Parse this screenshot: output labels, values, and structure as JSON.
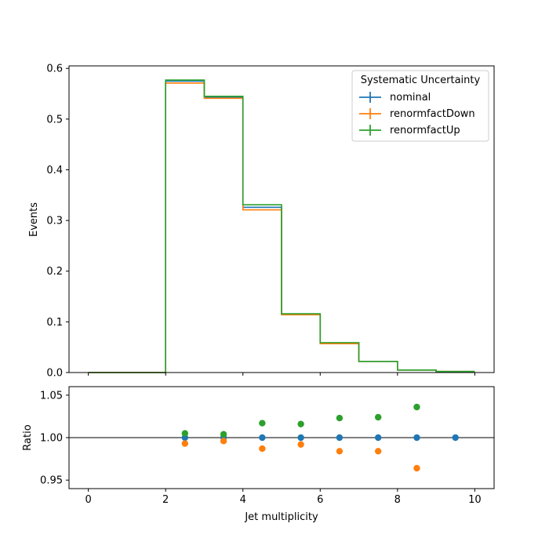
{
  "chart_data": [
    {
      "type": "step-histogram",
      "ylabel": "Events",
      "xlim": [
        -0.5,
        10.5
      ],
      "ylim": [
        0,
        0.605
      ],
      "bin_edges": [
        0,
        1,
        2,
        3,
        4,
        5,
        6,
        7,
        8,
        9,
        10
      ],
      "xticks": [
        0,
        2,
        4,
        6,
        8,
        10
      ],
      "yticks": [
        0.0,
        0.1,
        0.2,
        0.3,
        0.4,
        0.5,
        0.6
      ],
      "ytick_labels": [
        "0.0",
        "0.1",
        "0.2",
        "0.3",
        "0.4",
        "0.5",
        "0.6"
      ],
      "legend": {
        "title": "Systematic Uncertainty",
        "placement": "top-right"
      },
      "series": [
        {
          "name": "nominal",
          "color": "#1f77b4",
          "values": [
            0,
            0,
            0.575,
            0.543,
            0.326,
            0.115,
            0.058,
            0.022,
            0.005,
            0.002
          ]
        },
        {
          "name": "renormfactDown",
          "color": "#ff7f0e",
          "values": [
            0,
            0,
            0.571,
            0.541,
            0.321,
            0.114,
            0.057,
            0.022,
            0.005,
            0.002
          ]
        },
        {
          "name": "renormfactUp",
          "color": "#2ca02c",
          "values": [
            0,
            0,
            0.577,
            0.545,
            0.331,
            0.116,
            0.059,
            0.022,
            0.005,
            0.002
          ]
        }
      ]
    },
    {
      "type": "scatter",
      "xlabel": "Jet multiplicity",
      "ylabel": "Ratio",
      "xlim": [
        -0.5,
        10.5
      ],
      "ylim": [
        0.94,
        1.06
      ],
      "xticks": [
        0,
        2,
        4,
        6,
        8,
        10
      ],
      "xtick_labels": [
        "0",
        "2",
        "4",
        "6",
        "8",
        "10"
      ],
      "yticks": [
        0.95,
        1.0,
        1.05
      ],
      "ytick_labels": [
        "0.95",
        "1.00",
        "1.05"
      ],
      "reference_line": 1.0,
      "series": [
        {
          "name": "nominal",
          "color": "#1f77b4",
          "x": [
            2.5,
            3.5,
            4.5,
            5.5,
            6.5,
            7.5,
            8.5,
            9.5
          ],
          "y": [
            1.0,
            1.0,
            1.0,
            1.0,
            1.0,
            1.0,
            1.0,
            1.0
          ]
        },
        {
          "name": "renormfactDown",
          "color": "#ff7f0e",
          "x": [
            2.5,
            3.5,
            4.5,
            5.5,
            6.5,
            7.5,
            8.5
          ],
          "y": [
            0.993,
            0.996,
            0.987,
            0.992,
            0.984,
            0.984,
            0.964
          ]
        },
        {
          "name": "renormfactUp",
          "color": "#2ca02c",
          "x": [
            2.5,
            3.5,
            4.5,
            5.5,
            6.5,
            7.5,
            8.5
          ],
          "y": [
            1.005,
            1.004,
            1.017,
            1.016,
            1.023,
            1.024,
            1.036
          ]
        }
      ]
    }
  ]
}
